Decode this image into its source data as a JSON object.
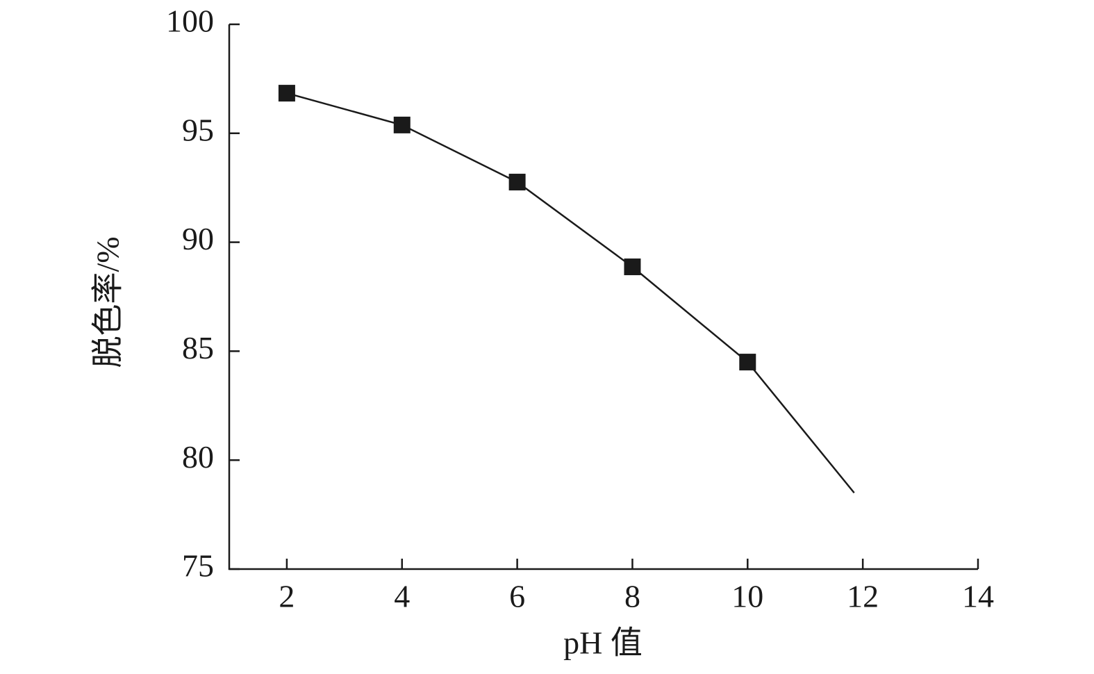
{
  "chart_data": {
    "type": "line",
    "x_label": "pH 值",
    "y_label": "脱色率/%",
    "x": [
      2,
      4,
      6,
      8,
      10,
      11.85
    ],
    "values": [
      96.84,
      95.38,
      92.76,
      88.87,
      84.5,
      78.5
    ],
    "markers": [
      true,
      true,
      true,
      true,
      true,
      false
    ],
    "color": "#1a1a1a",
    "xlim": [
      1,
      14
    ],
    "xticks": [
      2,
      4,
      6,
      8,
      10,
      12,
      14
    ],
    "ylim": [
      75,
      100
    ],
    "yticks": [
      75,
      80,
      85,
      90,
      95,
      100
    ],
    "grid": false
  }
}
